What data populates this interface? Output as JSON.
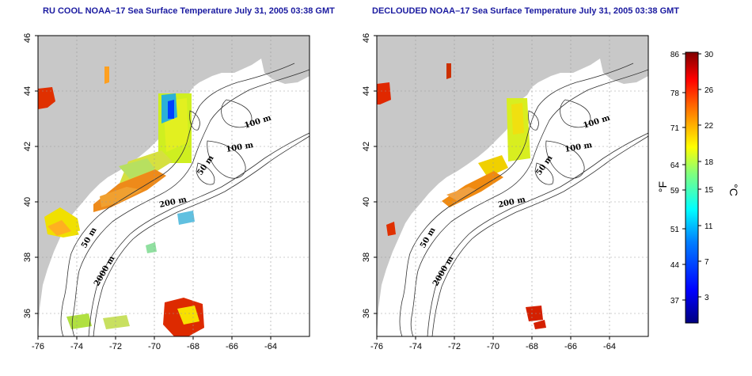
{
  "panels": [
    {
      "title": "RU COOL NOAA–17 Sea Surface Temperature July 31, 2005 03:38 GMT",
      "x_ticks": [
        "-76",
        "-74",
        "-72",
        "-70",
        "-68",
        "-66",
        "-64"
      ],
      "y_ticks": [
        "36",
        "38",
        "40",
        "42",
        "44",
        "46"
      ],
      "contour_labels": [
        "100 m",
        "100 m",
        "50 m",
        "200 m",
        "50 m",
        "2000 m"
      ]
    },
    {
      "title": "DECLOUDED NOAA–17 Sea Surface Temperature July 31, 2005 03:38 GMT",
      "x_ticks": [
        "-76",
        "-74",
        "-72",
        "-70",
        "-68",
        "-66",
        "-64"
      ],
      "y_ticks": [
        "36",
        "38",
        "40",
        "42",
        "44",
        "46"
      ],
      "contour_labels": [
        "100 m",
        "100 m",
        "50 m",
        "200 m",
        "50 m",
        "2000 m"
      ]
    }
  ],
  "colorbar": {
    "fahrenheit_unit": "°F",
    "celsius_unit": "°C",
    "fahrenheit_ticks": [
      "86",
      "78",
      "71",
      "64",
      "59",
      "51",
      "44",
      "37"
    ],
    "celsius_ticks": [
      "30",
      "26",
      "22",
      "18",
      "15",
      "11",
      "7",
      "3"
    ],
    "colors": [
      "#00007f",
      "#0000ff",
      "#007fff",
      "#00ffff",
      "#7fff7f",
      "#ffff00",
      "#ff7f00",
      "#ff0000",
      "#7f0000"
    ]
  },
  "colors": {
    "land": "#c8c8c8",
    "grid": "#9a9a9a"
  }
}
